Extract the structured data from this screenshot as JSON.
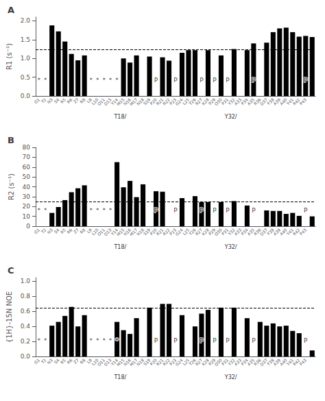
{
  "chart_data": [
    {
      "type": "bar",
      "title": "A",
      "ylabel": "R1 (s⁻¹)",
      "categories": [
        "G1",
        "T2",
        "N3",
        "S4",
        "R5",
        "R6",
        "Z7",
        "R8",
        "L9",
        "L10",
        "O11",
        "D13",
        "Y14",
        "M15",
        "N16",
        "M17",
        "N18",
        "S19",
        "P20",
        "R21",
        "R22",
        "P23",
        "G24",
        "L25",
        "T26",
        "R27",
        "K28",
        "P29",
        "O30",
        "P31",
        "Y32",
        "A33",
        "P34",
        "A35",
        "R36",
        "D37",
        "F38",
        "A39",
        "A40",
        "Y41",
        "R42",
        "P43",
        null
      ],
      "values": [
        null,
        null,
        1.88,
        1.72,
        1.45,
        1.12,
        0.95,
        1.08,
        null,
        null,
        null,
        null,
        null,
        1.0,
        0.89,
        1.08,
        null,
        1.05,
        null,
        1.03,
        0.94,
        null,
        1.15,
        1.22,
        1.22,
        null,
        1.22,
        null,
        1.08,
        null,
        1.25,
        null,
        1.22,
        1.4,
        null,
        1.42,
        1.7,
        1.8,
        1.82,
        1.7,
        1.58,
        1.6,
        1.57
      ],
      "color": "#000000",
      "ylim": [
        0.0,
        2.1
      ],
      "yticks": [
        {
          "value": 0,
          "label": "0.0"
        },
        0.5,
        {
          "value": 1,
          "label": "1.0"
        },
        1.5,
        {
          "value": 2,
          "label": "2.0"
        }
      ],
      "grid": false,
      "hline": {
        "y": 1.23,
        "color": "#000000",
        "line_style": "dashed"
      },
      "annotations": [
        {
          "text": "*",
          "x": 0,
          "y": 0.42
        },
        {
          "text": "*",
          "x": 1,
          "y": 0.42
        },
        {
          "text": "*",
          "x": 8,
          "y": 0.42
        },
        {
          "text": "*",
          "x": 9,
          "y": 0.42
        },
        {
          "text": "*",
          "x": 10,
          "y": 0.42
        },
        {
          "text": "*",
          "x": 11,
          "y": 0.42
        },
        {
          "text": "*",
          "x": 12,
          "y": 0.42
        },
        {
          "text": "P",
          "x": 18,
          "y": 0.42
        },
        {
          "text": "P",
          "x": 21,
          "y": 0.42
        },
        {
          "text": "P",
          "x": 25,
          "y": 0.42
        },
        {
          "text": "P",
          "x": 27,
          "y": 0.42
        },
        {
          "text": "P",
          "x": 29,
          "y": 0.42
        },
        {
          "text": "P",
          "x": 33,
          "y": 0.42
        },
        {
          "text": "P",
          "x": 41,
          "y": 0.42
        },
        {
          "text": "T18/",
          "x": 12.5
        },
        {
          "text": "Y32/",
          "x": 29.5
        }
      ]
    },
    {
      "type": "bar",
      "title": "B",
      "ylabel": "R2 (s⁻¹)",
      "categories": [
        "G1",
        "T2",
        "N3",
        "S4",
        "R5",
        "R6",
        "Z7",
        "R8",
        "L9",
        "L10",
        "O11",
        "D13",
        "Y14",
        "M15",
        "N16",
        "M17",
        "N18",
        "S19",
        "P20",
        "R21",
        "R22",
        "P23",
        "G24",
        "L25",
        "T26",
        "R27",
        "K28",
        "P29",
        "O30",
        "P31",
        "Y32",
        "A33",
        "P34",
        "A35",
        "R36",
        "D37",
        "F38",
        "A39",
        "A40",
        "Y41",
        "R42",
        "P43",
        null
      ],
      "values": [
        null,
        null,
        13.5,
        19.5,
        26.5,
        34.5,
        38.5,
        41.5,
        null,
        null,
        null,
        null,
        65.0,
        39.5,
        46.0,
        29.5,
        42.5,
        null,
        35.5,
        35.0,
        null,
        null,
        28.5,
        null,
        30.5,
        24.5,
        24.5,
        null,
        24.5,
        null,
        25.5,
        null,
        21.0,
        null,
        null,
        16.0,
        15.5,
        15.5,
        12.5,
        13.5,
        10.5,
        null,
        10.0
      ],
      "color": "#000000",
      "ylim": [
        0.0,
        80.0
      ],
      "yticks": [
        0,
        10,
        20,
        30,
        40,
        50,
        60,
        70,
        80
      ],
      "grid": false,
      "hline": {
        "y": 25.0,
        "color": "#000000",
        "line_style": "dashed"
      },
      "annotations": [
        {
          "text": "*",
          "x": 0,
          "y": 16.0
        },
        {
          "text": "*",
          "x": 1,
          "y": 16.0
        },
        {
          "text": "*",
          "x": 8,
          "y": 16.0
        },
        {
          "text": "*",
          "x": 9,
          "y": 16.0
        },
        {
          "text": "*",
          "x": 10,
          "y": 16.0
        },
        {
          "text": "*",
          "x": 11,
          "y": 16.0
        },
        {
          "text": "P",
          "x": 18,
          "y": 16.0
        },
        {
          "text": "P",
          "x": 21,
          "y": 16.0
        },
        {
          "text": "P",
          "x": 25,
          "y": 16.0
        },
        {
          "text": "P",
          "x": 27,
          "y": 16.0
        },
        {
          "text": "P",
          "x": 29,
          "y": 16.0
        },
        {
          "text": "P",
          "x": 33,
          "y": 16.0
        },
        {
          "text": "P",
          "x": 41,
          "y": 16.0
        },
        {
          "text": "T18/",
          "x": 12.5
        },
        {
          "text": "Y32/",
          "x": 29.5
        }
      ]
    },
    {
      "type": "bar",
      "title": "C",
      "ylabel": "{1H}-15N NOE",
      "categories": [
        "G1",
        "T2",
        "N3",
        "S4",
        "R5",
        "R6",
        "Z7",
        "R8",
        "L9",
        "L10",
        "O11",
        "D13",
        "Y14",
        "M15",
        "N16",
        "M17",
        "N18",
        "S19",
        "P20",
        "R21",
        "R22",
        "P23",
        "G24",
        "L25",
        "T26",
        "R27",
        "K28",
        "P29",
        "O30",
        "P31",
        "Y32",
        "A33",
        "P34",
        "A35",
        "R36",
        "D37",
        "F38",
        "A39",
        "A40",
        "Y41",
        "R42",
        "P43",
        null
      ],
      "values": [
        null,
        null,
        0.41,
        0.46,
        0.54,
        0.66,
        0.4,
        0.55,
        null,
        null,
        null,
        null,
        0.46,
        0.35,
        0.3,
        0.51,
        null,
        0.65,
        null,
        0.7,
        0.7,
        null,
        0.55,
        null,
        0.4,
        0.57,
        0.62,
        null,
        0.65,
        null,
        0.65,
        null,
        0.51,
        null,
        0.46,
        0.41,
        0.44,
        0.4,
        0.41,
        0.34,
        0.31,
        null,
        0.08
      ],
      "color": "#000000",
      "ylim": [
        0.0,
        1.05
      ],
      "yticks": [
        {
          "value": 0,
          "label": "0.0"
        },
        0.2,
        0.4,
        0.6,
        0.8,
        {
          "value": 1,
          "label": "1.0"
        }
      ],
      "grid": false,
      "hline": {
        "y": 0.65,
        "color": "#000000",
        "line_style": "dashed"
      },
      "annotations": [
        {
          "text": "*",
          "x": 0,
          "y": 0.21
        },
        {
          "text": "*",
          "x": 1,
          "y": 0.21
        },
        {
          "text": "*",
          "x": 8,
          "y": 0.21
        },
        {
          "text": "*",
          "x": 9,
          "y": 0.21
        },
        {
          "text": "*",
          "x": 10,
          "y": 0.21
        },
        {
          "text": "*",
          "x": 11,
          "y": 0.21
        },
        {
          "text": "*",
          "x": 12,
          "y": 0.21
        },
        {
          "text": "P",
          "x": 18,
          "y": 0.21
        },
        {
          "text": "P",
          "x": 21,
          "y": 0.21
        },
        {
          "text": "P",
          "x": 25,
          "y": 0.21
        },
        {
          "text": "P",
          "x": 27,
          "y": 0.21
        },
        {
          "text": "P",
          "x": 29,
          "y": 0.21
        },
        {
          "text": "P",
          "x": 33,
          "y": 0.21
        },
        {
          "text": "P",
          "x": 41,
          "y": 0.21
        },
        {
          "text": "T18/",
          "x": 12.5
        },
        {
          "text": "Y32/",
          "x": 29.5
        }
      ]
    }
  ]
}
